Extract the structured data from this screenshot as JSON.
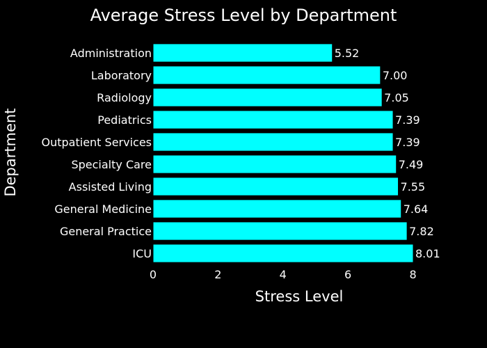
{
  "chart_data": {
    "type": "bar",
    "orientation": "horizontal",
    "title": "Average Stress Level by Department",
    "xlabel": "Stress Level",
    "ylabel": "Department",
    "categories": [
      "Administration",
      "Laboratory",
      "Radiology",
      "Pediatrics",
      "Outpatient Services",
      "Specialty Care",
      "Assisted Living",
      "General Medicine",
      "General Practice",
      "ICU"
    ],
    "values": [
      5.52,
      7.0,
      7.05,
      7.39,
      7.39,
      7.49,
      7.55,
      7.64,
      7.82,
      8.01
    ],
    "value_labels": [
      "5.52",
      "7.00",
      "7.05",
      "7.39",
      "7.39",
      "7.49",
      "7.55",
      "7.64",
      "7.82",
      "8.01"
    ],
    "xlim": [
      0,
      8.01
    ],
    "xticks": [
      0,
      2,
      4,
      6,
      8
    ],
    "xtick_labels": [
      "0",
      "2",
      "4",
      "6",
      "8"
    ],
    "grid": false,
    "legend": "none"
  },
  "colors": {
    "background": "#000000",
    "bar_fill": "#00ffff",
    "bar_stroke": "#000000",
    "text": "#ffffff"
  }
}
